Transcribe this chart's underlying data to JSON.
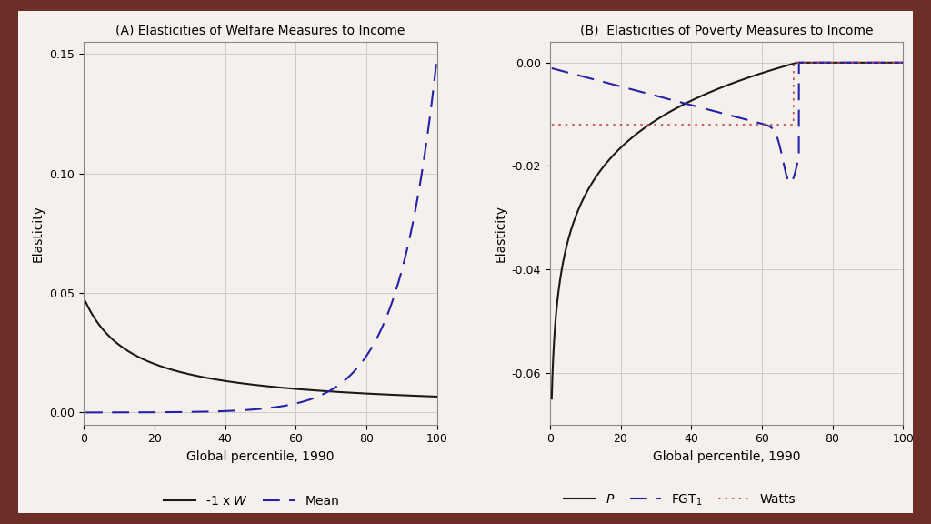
{
  "background_color": "#6b2e28",
  "figure_bg": "#f5f0eb",
  "title_A": "(A) Elasticities of Welfare Measures to Income",
  "title_B": "(B)  Elasticities of Poverty Measures to Income",
  "xlabel": "Global percentile, 1990",
  "ylabel": "Elasticity",
  "xlim": [
    0,
    100
  ],
  "ylim_A": [
    -0.005,
    0.155
  ],
  "ylim_B": [
    -0.07,
    0.004
  ],
  "yticks_A": [
    0.0,
    0.05,
    0.1,
    0.15
  ],
  "yticks_B": [
    -0.06,
    -0.04,
    -0.02,
    0.0
  ],
  "xticks": [
    0,
    20,
    40,
    60,
    80,
    100
  ],
  "line_black": "#1a1a1a",
  "line_blue": "#2222aa",
  "line_red": "#cc4444",
  "legend_A_labels": [
    "-1 x $W$",
    "Mean"
  ],
  "legend_B_labels": [
    "$P$",
    "FGT$_1$",
    "Watts"
  ],
  "title_fontsize": 10,
  "axis_label_fontsize": 10,
  "tick_fontsize": 9,
  "legend_fontsize": 10
}
